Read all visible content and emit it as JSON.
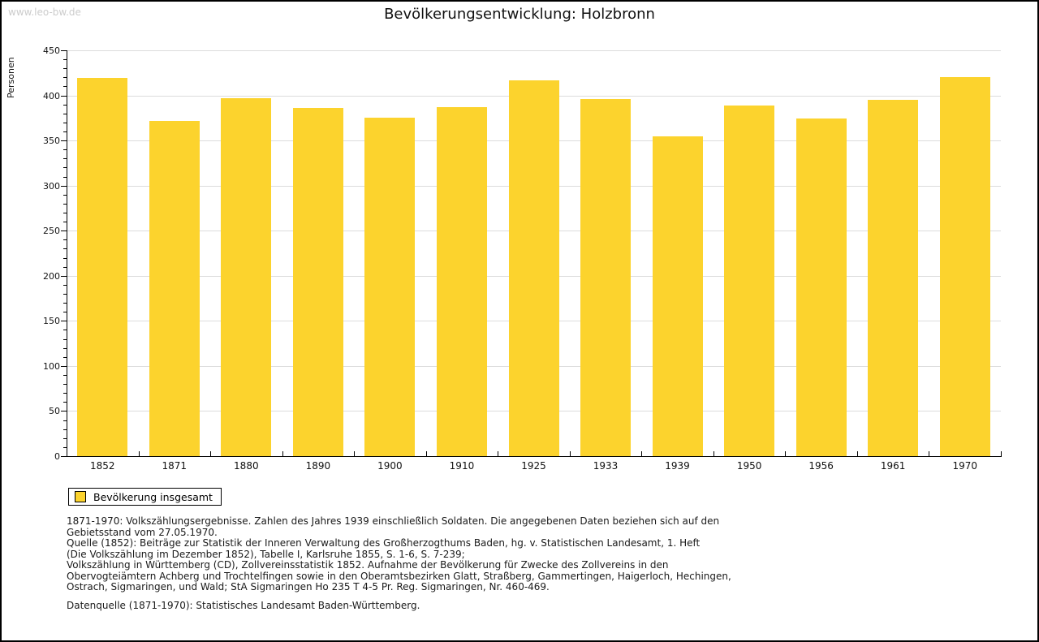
{
  "page": {
    "watermark": "www.leo-bw.de",
    "title": "Bevölkerungsentwicklung: Holzbronn"
  },
  "chart_data": {
    "type": "bar",
    "title": "Bevölkerungsentwicklung: Holzbronn",
    "xlabel": "",
    "ylabel": "Personen",
    "categories": [
      "1852",
      "1871",
      "1880",
      "1890",
      "1900",
      "1910",
      "1925",
      "1933",
      "1939",
      "1950",
      "1956",
      "1961",
      "1970"
    ],
    "series": [
      {
        "name": "Bevölkerung insgesamt",
        "values": [
          419,
          372,
          397,
          386,
          375,
          387,
          417,
          396,
          355,
          389,
          374,
          395,
          420
        ]
      }
    ],
    "ylim": [
      0,
      450
    ],
    "ytick_step": 50,
    "minor_tick_step": 10,
    "grid": true,
    "legend_position": "bottom-left",
    "bar_color": "#FCD32D",
    "grid_color": "#DCDCDC",
    "axis_color": "#000000"
  },
  "legend": {
    "label": "Bevölkerung insgesamt",
    "swatch_color": "#FCD32D"
  },
  "footnotes": {
    "lines": [
      "1871-1970: Volkszählungsergebnisse. Zahlen des Jahres 1939 einschließlich Soldaten. Die angegebenen Daten beziehen sich auf den",
      "Gebietsstand vom 27.05.1970.",
      "Quelle (1852): Beiträge zur Statistik der Inneren Verwaltung des Großherzogthums Baden, hg. v. Statistischen Landesamt, 1. Heft",
      "(Die Volkszählung im Dezember 1852), Tabelle I, Karlsruhe 1855, S. 1-6, S. 7-239;",
      "Volkszählung in Württemberg (CD), Zollvereinsstatistik 1852. Aufnahme der Bevölkerung für Zwecke des Zollvereins in den",
      "Obervogteiämtern Achberg und Trochtelfingen sowie in den Oberamtsbezirken Glatt, Straßberg, Gammertingen, Haigerloch, Hechingen,",
      "Ostrach, Sigmaringen, und Wald; StA Sigmaringen Ho 235 T 4-5 Pr. Reg. Sigmaringen, Nr. 460-469."
    ],
    "datasource": "Datenquelle (1871-1970): Statistisches Landesamt Baden-Württemberg."
  }
}
